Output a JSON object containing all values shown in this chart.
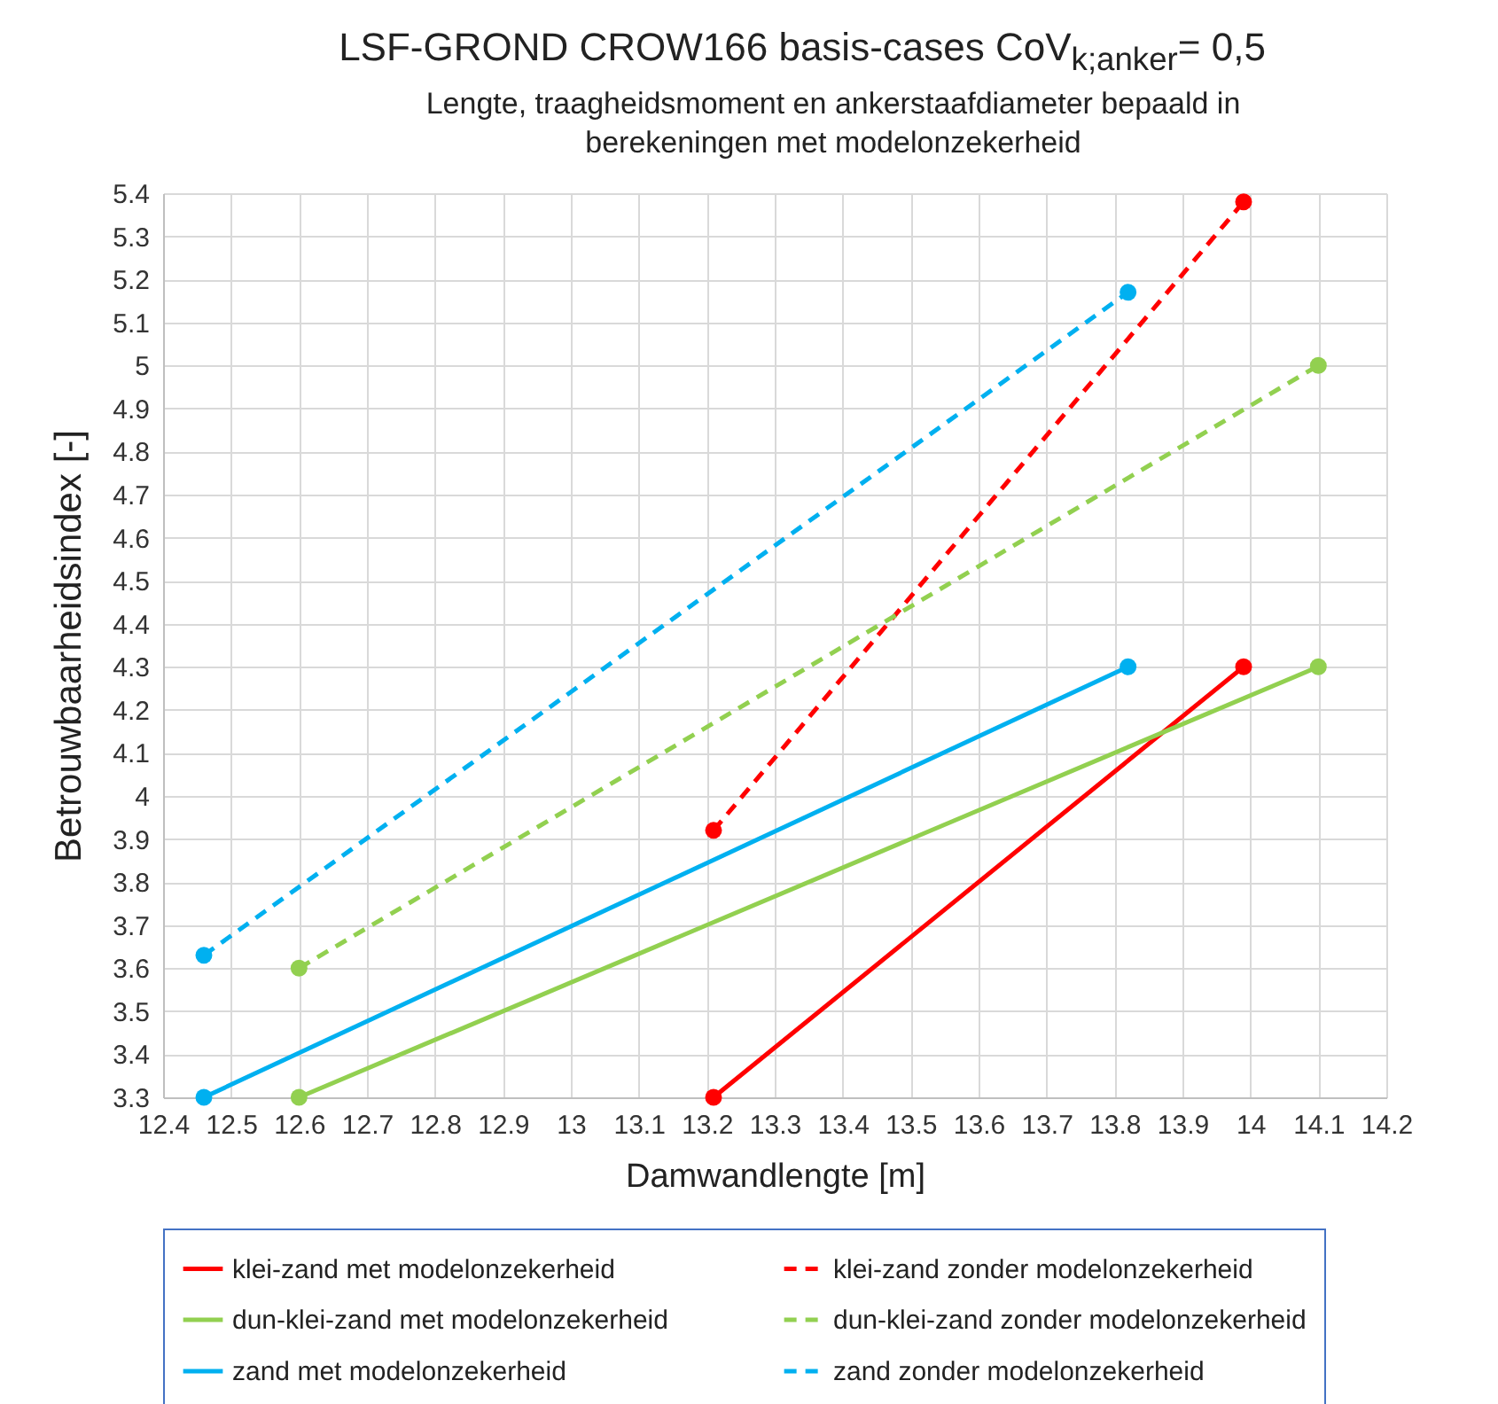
{
  "chart_data": {
    "type": "line",
    "title": "LSF-GROND CROW166 basis-cases CoV$_{k;anker}$= 0,5",
    "subtitle": "Lengte, traagheidsmoment en ankerstaafdiameter bepaald in berekeningen met modelonzekerheid",
    "xlabel": "Damwandlengte [m]",
    "ylabel": "Betrouwbaarheidsindex  [-]",
    "series": [
      {
        "name": "klei-zand met modelonzekerheid",
        "color": "#ff0000",
        "line_style": "solid",
        "x": [
          13.21,
          13.99
        ],
        "values": [
          3.3,
          4.3
        ]
      },
      {
        "name": "klei-zand zonder modelonzekerheid",
        "color": "#ff0000",
        "line_style": "dashed",
        "x": [
          13.21,
          13.99
        ],
        "values": [
          3.92,
          5.38
        ]
      },
      {
        "name": "dun-klei-zand met modelonzekerheid",
        "color": "#92d050",
        "line_style": "solid",
        "x": [
          12.6,
          14.1
        ],
        "values": [
          3.3,
          4.3
        ]
      },
      {
        "name": "dun-klei-zand zonder modelonzekerheid",
        "color": "#92d050",
        "line_style": "dashed",
        "x": [
          12.6,
          14.1
        ],
        "values": [
          3.6,
          5.0
        ]
      },
      {
        "name": "zand met modelonzekerheid",
        "color": "#00b0f0",
        "line_style": "solid",
        "x": [
          12.46,
          13.82
        ],
        "values": [
          3.3,
          4.3
        ]
      },
      {
        "name": "zand zonder modelonzekerheid",
        "color": "#00b0f0",
        "line_style": "dashed",
        "x": [
          12.46,
          13.82
        ],
        "values": [
          3.63,
          5.17
        ]
      }
    ],
    "xlim": [
      12.4,
      14.2
    ],
    "xticks": [
      12.4,
      12.5,
      12.6,
      12.7,
      12.8,
      12.9,
      13,
      13.1,
      13.2,
      13.3,
      13.4,
      13.5,
      13.6,
      13.7,
      13.8,
      13.9,
      14,
      14.1,
      14.2
    ],
    "ylim": [
      3.3,
      5.4
    ],
    "yticks": [
      3.3,
      3.4,
      3.5,
      3.6,
      3.7,
      3.8,
      3.9,
      4,
      4.1,
      4.2,
      4.3,
      4.4,
      4.5,
      4.6,
      4.7,
      4.8,
      4.9,
      5,
      5.1,
      5.2,
      5.3,
      5.4
    ],
    "grid": true,
    "legend": "bottom",
    "marker": "circle"
  }
}
